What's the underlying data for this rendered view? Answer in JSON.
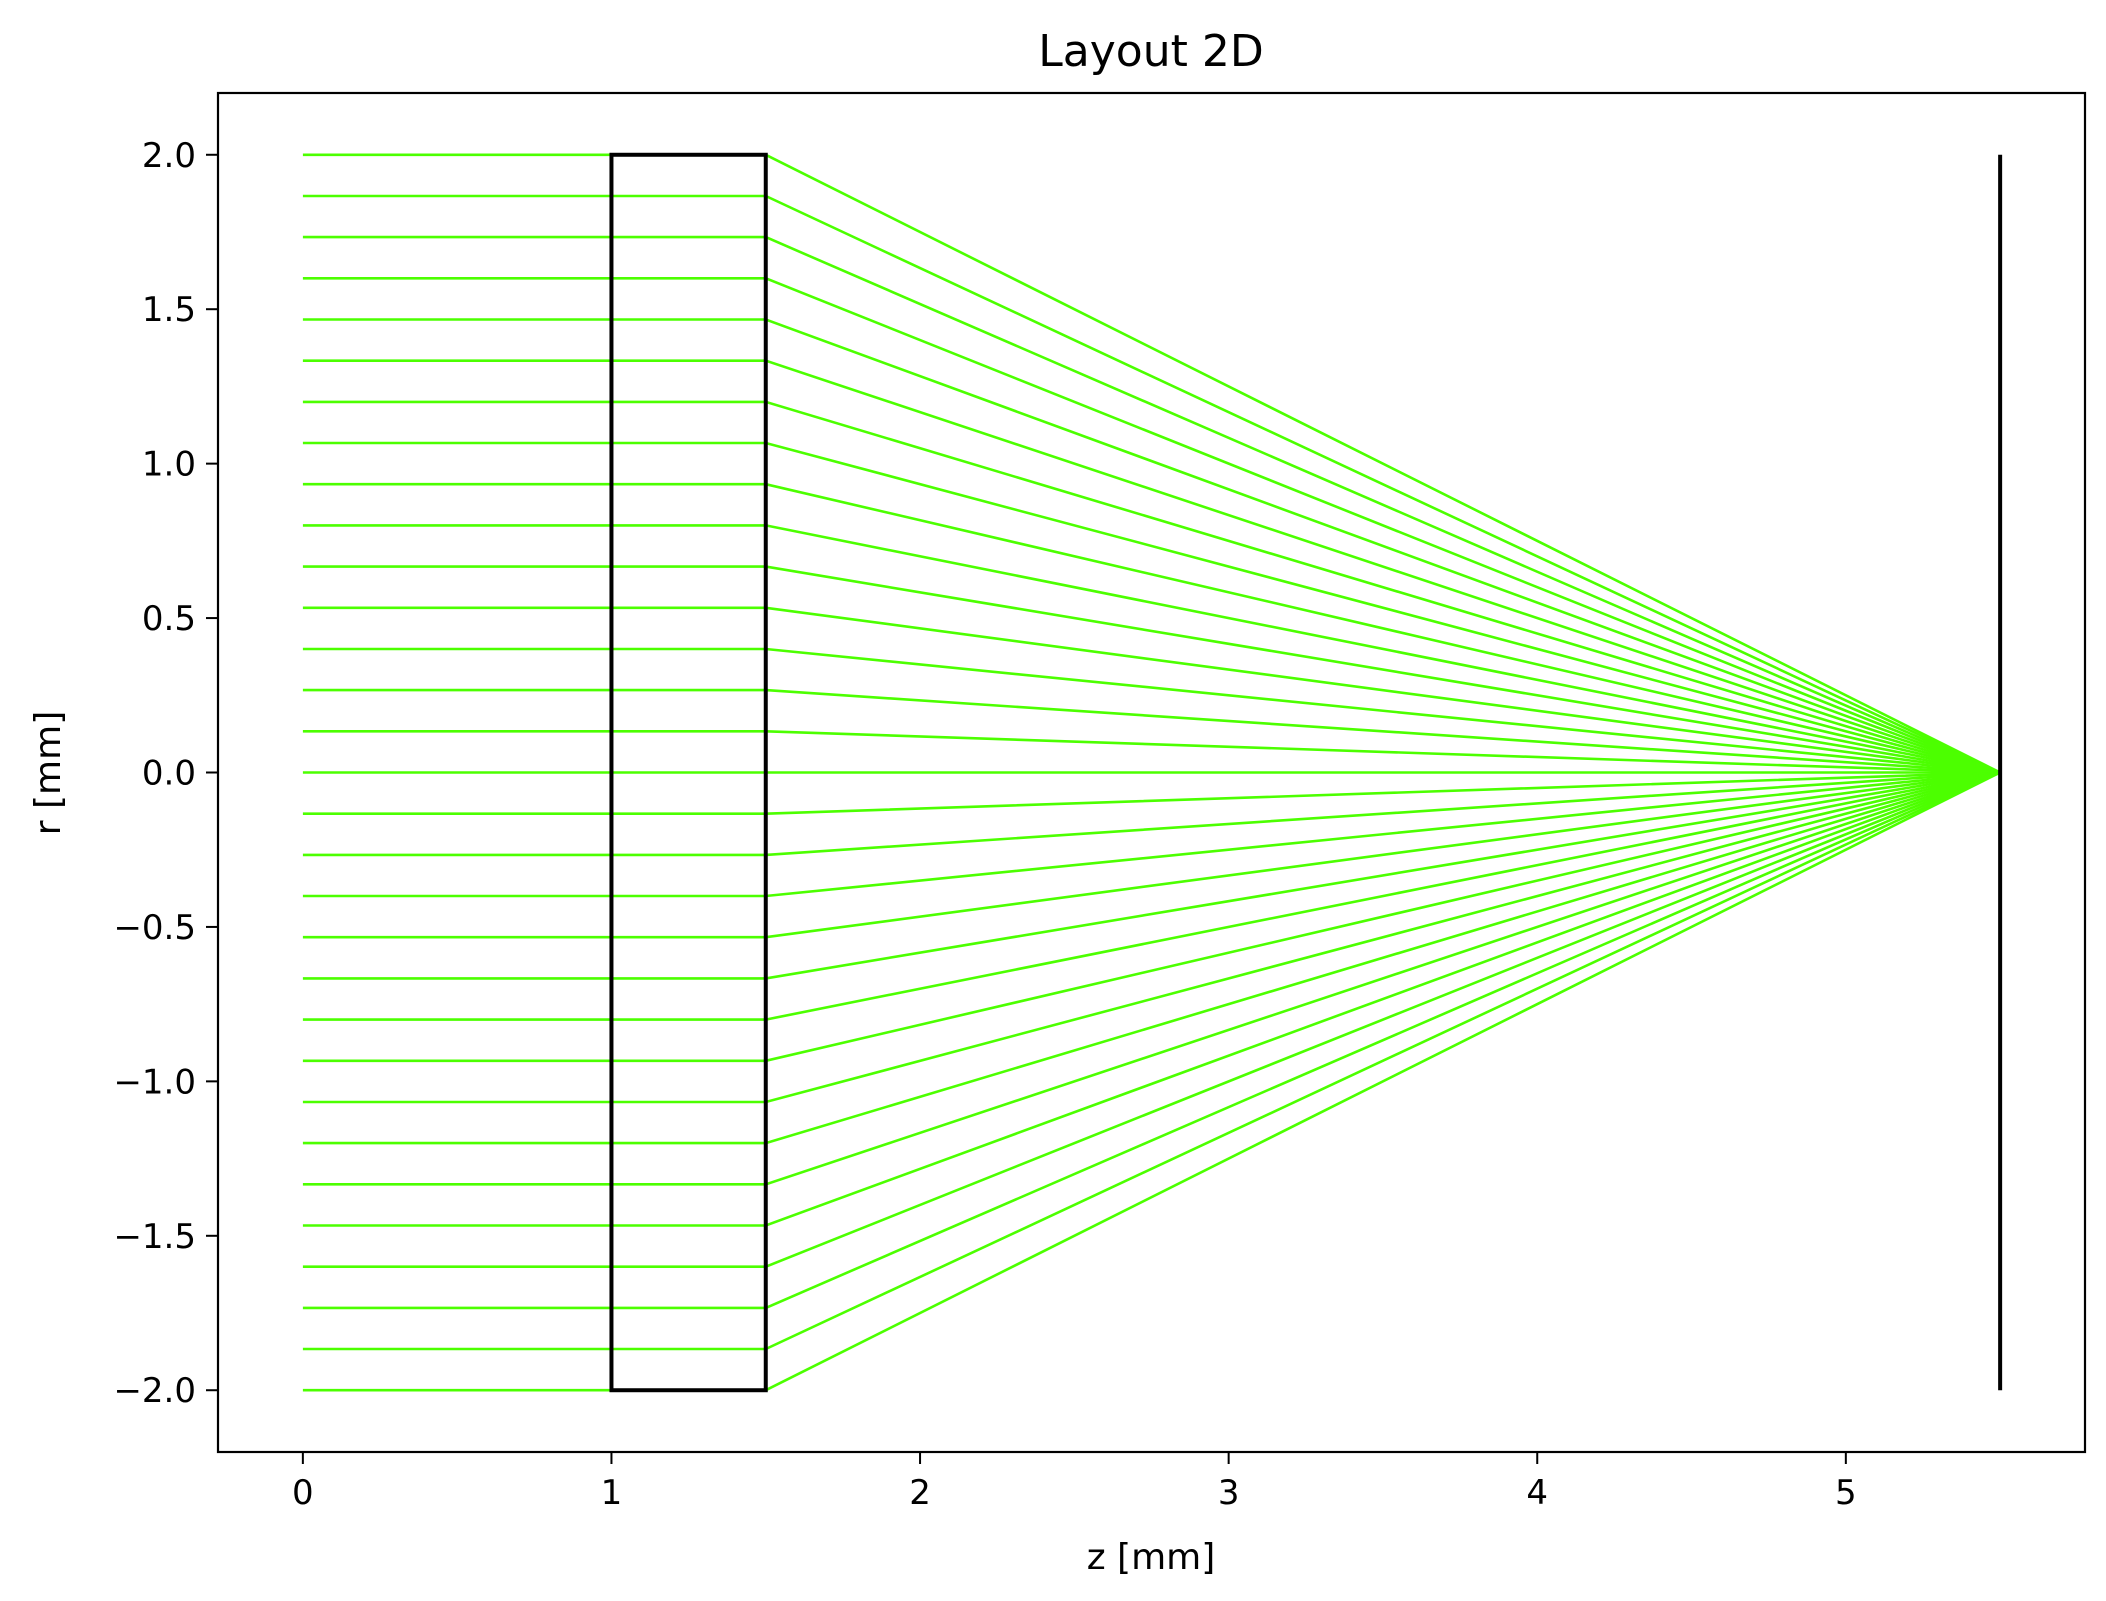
{
  "chart_data": {
    "type": "line",
    "title": "Layout 2D",
    "xlabel": "z [mm]",
    "ylabel": "r [mm]",
    "xlim": [
      -0.275,
      5.775
    ],
    "ylim": [
      -2.2,
      2.2
    ],
    "x_ticks": [
      {
        "value": 0,
        "label": "0"
      },
      {
        "value": 1,
        "label": "1"
      },
      {
        "value": 2,
        "label": "2"
      },
      {
        "value": 3,
        "label": "3"
      },
      {
        "value": 4,
        "label": "4"
      },
      {
        "value": 5,
        "label": "5"
      }
    ],
    "y_ticks": [
      {
        "value": 2.0,
        "label": "2.0"
      },
      {
        "value": 1.5,
        "label": "1.5"
      },
      {
        "value": 1.0,
        "label": "1.0"
      },
      {
        "value": 0.5,
        "label": "0.5"
      },
      {
        "value": 0.0,
        "label": "0.0"
      },
      {
        "value": -0.5,
        "label": "−0.5"
      },
      {
        "value": -1.0,
        "label": "−1.0"
      },
      {
        "value": -1.5,
        "label": "−1.5"
      },
      {
        "value": -2.0,
        "label": "−2.0"
      }
    ],
    "grid": false,
    "ray_color": "#4cff00",
    "element_color": "#000000",
    "rays": {
      "count": 31,
      "r_min": -2.0,
      "r_max": 2.0,
      "z_start": 0,
      "z_lens_front": 1.0,
      "z_lens_back": 1.5,
      "z_focus": 5.5,
      "r_focus": 0.0
    },
    "lens": {
      "z_front": 1.0,
      "z_back": 1.5,
      "r_min": -2.0,
      "r_max": 2.0
    },
    "image_plane": {
      "z": 5.5,
      "r_min": -2.0,
      "r_max": 2.0
    }
  }
}
